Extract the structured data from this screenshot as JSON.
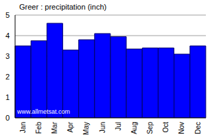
{
  "chart_data": {
    "type": "bar",
    "title": "Greer : precipitation (inch)",
    "annotations": [
      "www.allmetsat.com"
    ],
    "categories": [
      "Jan",
      "Feb",
      "Mar",
      "Apr",
      "May",
      "Jun",
      "Jul",
      "Aug",
      "Sep",
      "Oct",
      "Nov",
      "Dec"
    ],
    "values": [
      3.5,
      3.75,
      4.6,
      3.3,
      3.8,
      4.1,
      3.95,
      3.35,
      3.4,
      3.4,
      3.1,
      3.5
    ],
    "color": "#0000ff",
    "ylim": [
      0,
      5
    ],
    "yticks": [
      0,
      1,
      2,
      3,
      4,
      5
    ],
    "grid": true
  }
}
